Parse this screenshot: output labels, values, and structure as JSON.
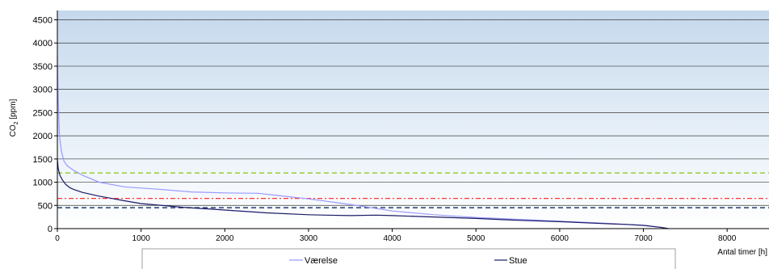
{
  "chart_data": {
    "type": "line",
    "xlabel": "Antal timer [h]",
    "ylabel": "CO",
    "ylabel_sub": "2",
    "ylabel_unit": " [ppm]",
    "xlim": [
      0,
      8500
    ],
    "ylim": [
      0,
      4700
    ],
    "x_ticks": [
      "0",
      "1000",
      "2000",
      "3000",
      "4000",
      "5000",
      "6000",
      "7000",
      "8000"
    ],
    "y_ticks": [
      "0",
      "500",
      "1000",
      "1500",
      "2000",
      "2500",
      "3000",
      "3500",
      "4000",
      "4500"
    ],
    "grid": true,
    "legend_position": "bottom",
    "series": [
      {
        "name": "Værelse",
        "color": "#9999ff",
        "x": [
          0,
          10,
          25,
          50,
          80,
          120,
          200,
          300,
          500,
          800,
          1200,
          1600,
          2000,
          2400,
          2600,
          3000,
          3500,
          4000,
          4500,
          5000,
          5500,
          6000,
          6500,
          7000,
          7200,
          7300
        ],
        "y": [
          3700,
          2800,
          2000,
          1650,
          1450,
          1350,
          1250,
          1150,
          1000,
          900,
          850,
          790,
          770,
          760,
          720,
          640,
          520,
          380,
          300,
          240,
          200,
          160,
          120,
          70,
          30,
          0
        ]
      },
      {
        "name": "Stue",
        "color": "#1a1a66",
        "x": [
          0,
          10,
          30,
          60,
          100,
          150,
          200,
          300,
          500,
          800,
          1000,
          1500,
          2000,
          2500,
          3000,
          3200,
          3500,
          3800,
          4000,
          4500,
          5000,
          5500,
          6000,
          6500,
          6800,
          7000,
          7200,
          7300
        ],
        "y": [
          1500,
          1300,
          1150,
          1050,
          950,
          880,
          840,
          780,
          700,
          600,
          540,
          460,
          400,
          340,
          300,
          290,
          280,
          290,
          280,
          250,
          220,
          180,
          150,
          110,
          90,
          70,
          30,
          0
        ]
      }
    ],
    "reference_lines": [
      {
        "y": 1200,
        "color": "#99cc33",
        "style": "dashed"
      },
      {
        "y": 650,
        "color": "#ff3333",
        "style": "dash-dot"
      },
      {
        "y": 450,
        "color": "#1f3f6f",
        "style": "dashed"
      }
    ]
  }
}
